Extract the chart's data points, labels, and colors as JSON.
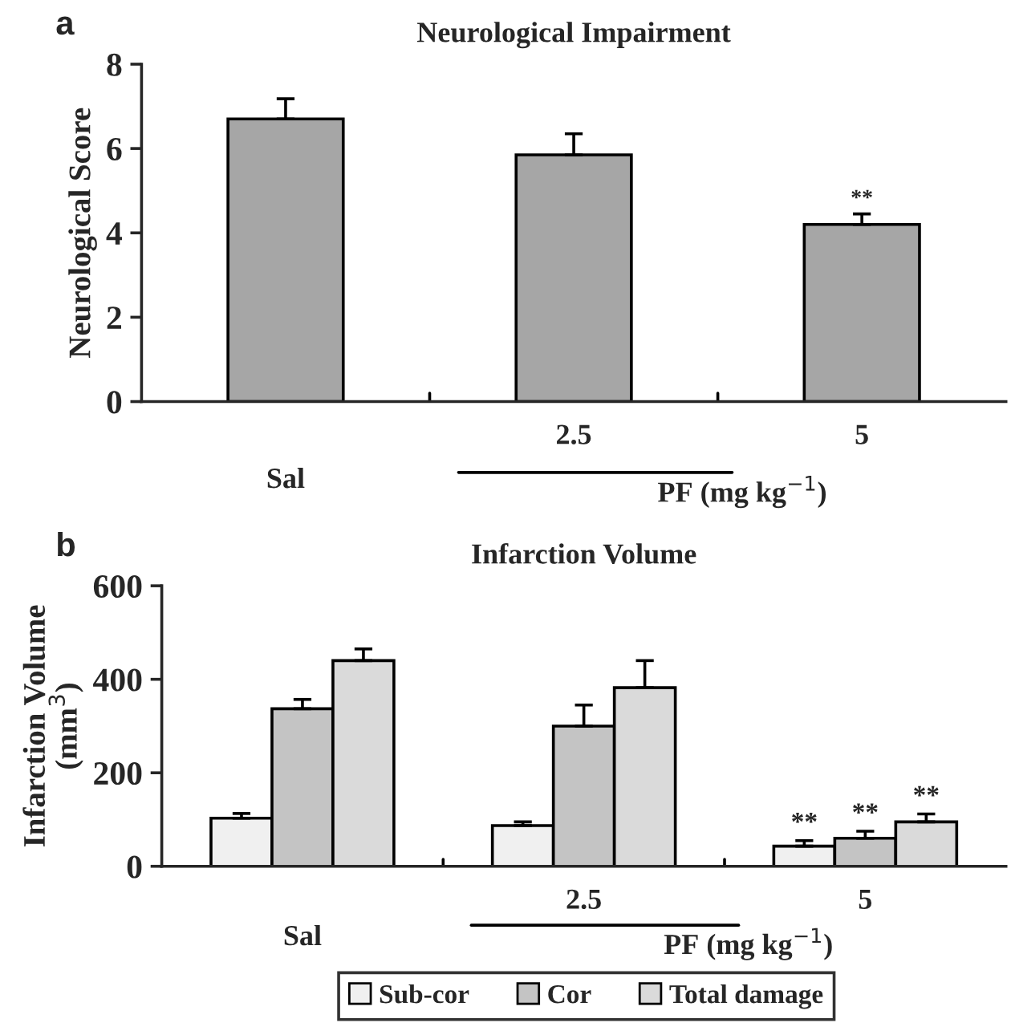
{
  "chart_data": [
    {
      "type": "bar",
      "title": "Neurological Impairment",
      "ylabel": "Neurological Score",
      "xlabel": "PF (mg kg$^{−1}$)",
      "categories": [
        "Sal",
        "2.5",
        "5"
      ],
      "series": [
        {
          "color": "#a6a6a6",
          "values": [
            6.7,
            5.85,
            4.2
          ],
          "errors": [
            0.48,
            0.5,
            0.25
          ]
        }
      ],
      "ylim": [
        0,
        8
      ],
      "yticks": [
        0,
        2,
        4,
        6,
        8
      ],
      "grid": false,
      "annotations": [
        "a",
        {
          "text": "**",
          "x": "5",
          "y": 4.2
        }
      ]
    },
    {
      "type": "bar",
      "title": "Infarction Volume",
      "ylabel": "Infarction Volume\n(mm$^{3}$)",
      "xlabel": "PF (mg kg$^{−1}$)",
      "categories": [
        "Sal",
        "2.5",
        "5"
      ],
      "series": [
        {
          "name": "Sub-cor",
          "color": "#f0f0f0",
          "values": [
            103,
            87,
            43
          ],
          "errors": [
            10,
            8,
            12
          ]
        },
        {
          "name": "Cor",
          "color": "#c4c4c4",
          "values": [
            337,
            300,
            60
          ],
          "errors": [
            20,
            45,
            15
          ]
        },
        {
          "name": "Total damage",
          "color": "#dadada",
          "values": [
            440,
            382,
            95
          ],
          "errors": [
            25,
            58,
            17
          ]
        }
      ],
      "ylim": [
        0,
        600
      ],
      "yticks": [
        0,
        200,
        400,
        600
      ],
      "grid": false,
      "legend": "bottom",
      "annotations": [
        "b",
        "**",
        "**",
        "**"
      ]
    }
  ]
}
